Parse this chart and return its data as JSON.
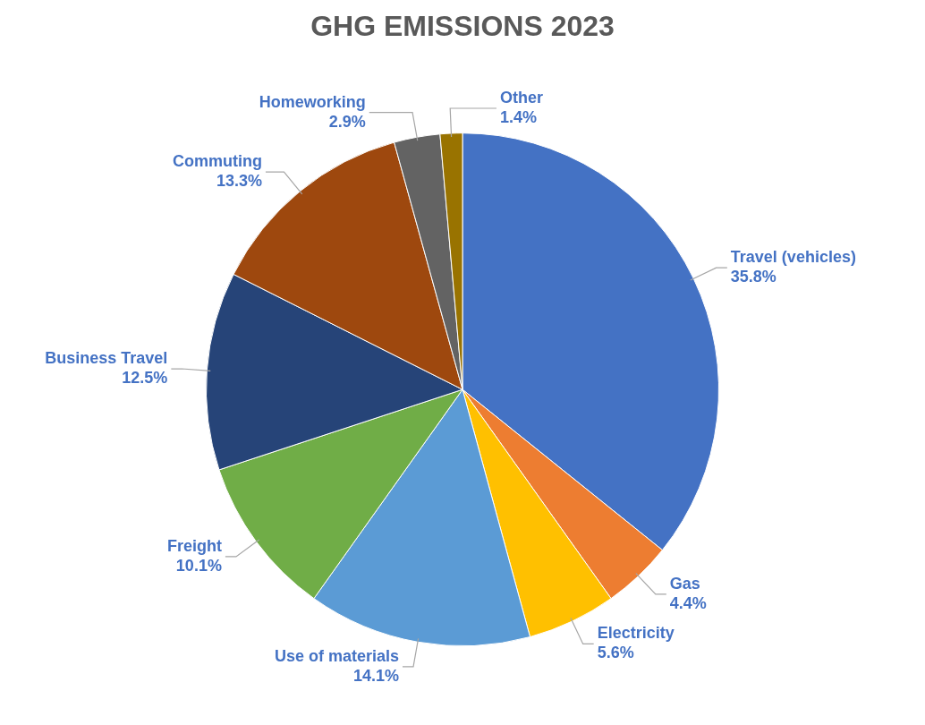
{
  "chart_data": {
    "type": "pie",
    "title": "GHG EMISSIONS 2023",
    "categories": [
      "Travel (vehicles)",
      "Gas",
      "Electricity",
      "Use of materials",
      "Freight",
      "Business Travel",
      "Commuting",
      "Homeworking",
      "Other"
    ],
    "values": [
      35.8,
      4.4,
      5.6,
      14.1,
      10.1,
      12.5,
      13.3,
      2.9,
      1.4
    ],
    "value_labels": [
      "35.8%",
      "4.4%",
      "5.6%",
      "14.1%",
      "10.1%",
      "12.5%",
      "13.3%",
      "2.9%",
      "1.4%"
    ],
    "colors": [
      "#4472c4",
      "#ed7d31",
      "#ffc000",
      "#5b9bd5",
      "#70ad47",
      "#264478",
      "#9e480e",
      "#636363",
      "#997300"
    ],
    "legend": false
  }
}
